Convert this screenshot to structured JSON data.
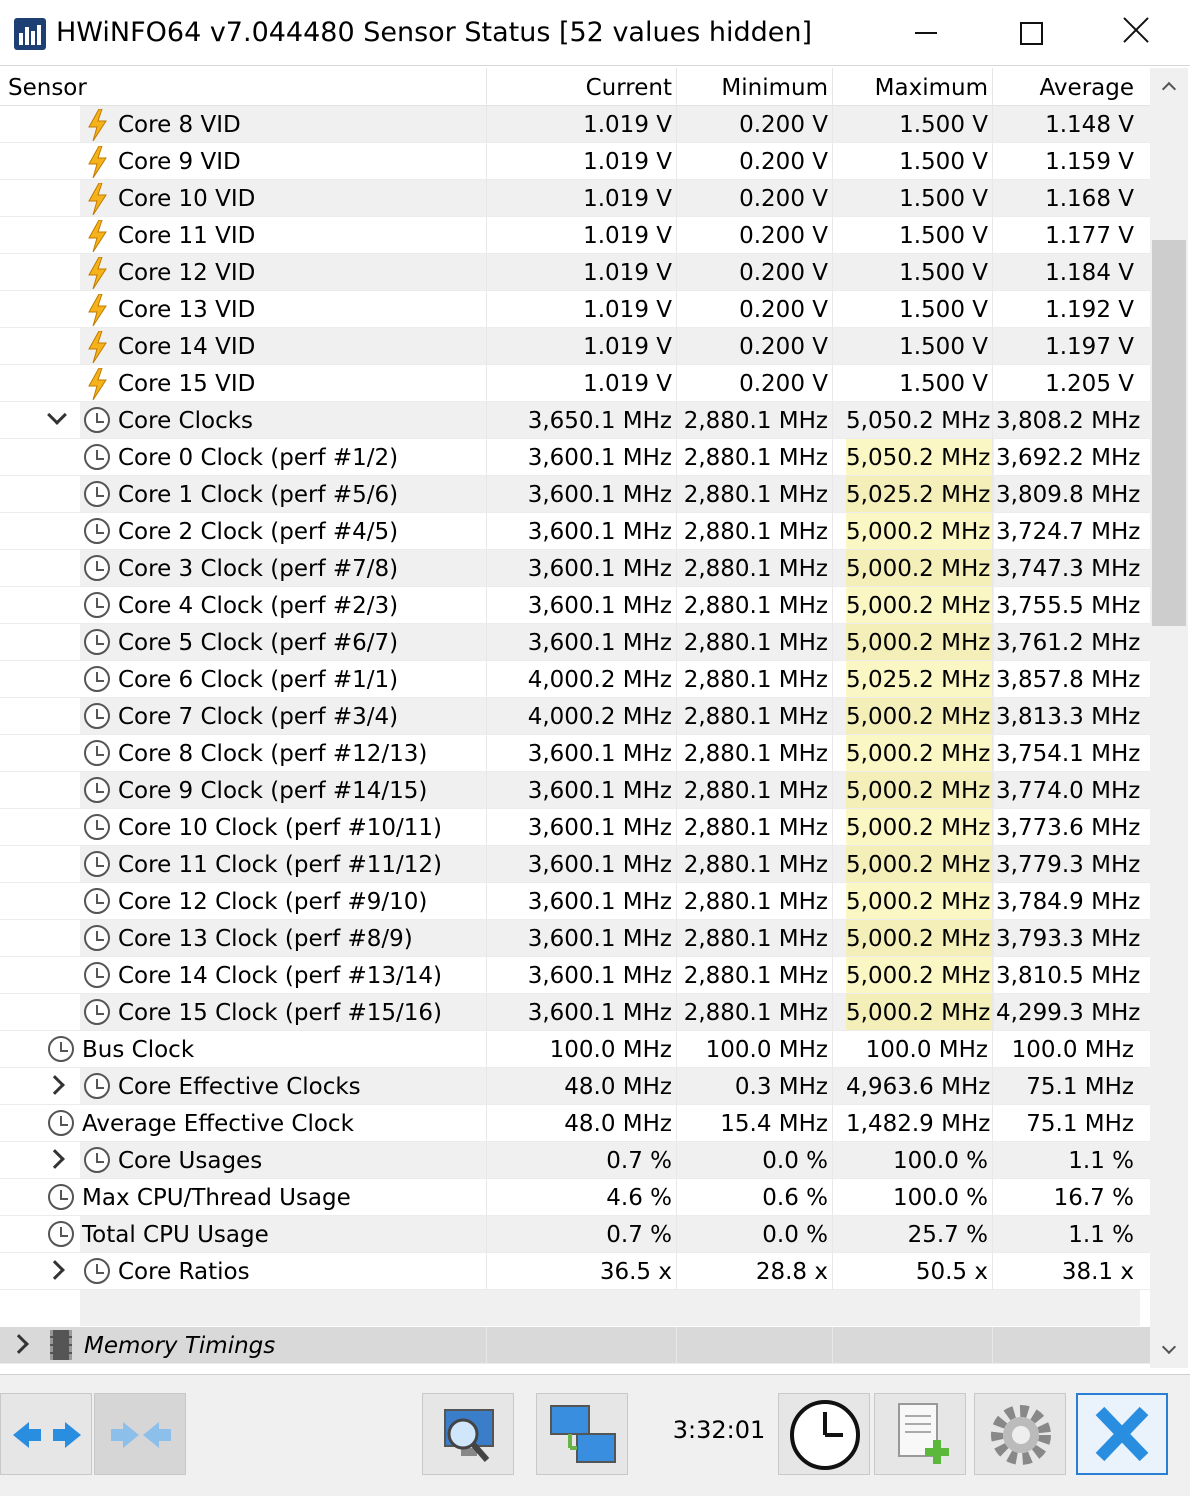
{
  "window": {
    "title": "HWiNFO64 v7.044480 Sensor Status [52 values hidden]"
  },
  "columns": {
    "sensor": "Sensor",
    "current": "Current",
    "minimum": "Minimum",
    "maximum": "Maximum",
    "average": "Average"
  },
  "rows": [
    {
      "label": "Core 8 VID",
      "current": "1.019 V",
      "minimum": "0.200 V",
      "maximum": "1.500 V",
      "average": "1.148 V",
      "icon": "bolt-icon",
      "level": 2
    },
    {
      "label": "Core 9 VID",
      "current": "1.019 V",
      "minimum": "0.200 V",
      "maximum": "1.500 V",
      "average": "1.159 V",
      "icon": "bolt-icon",
      "level": 2
    },
    {
      "label": "Core 10 VID",
      "current": "1.019 V",
      "minimum": "0.200 V",
      "maximum": "1.500 V",
      "average": "1.168 V",
      "icon": "bolt-icon",
      "level": 2
    },
    {
      "label": "Core 11 VID",
      "current": "1.019 V",
      "minimum": "0.200 V",
      "maximum": "1.500 V",
      "average": "1.177 V",
      "icon": "bolt-icon",
      "level": 2
    },
    {
      "label": "Core 12 VID",
      "current": "1.019 V",
      "minimum": "0.200 V",
      "maximum": "1.500 V",
      "average": "1.184 V",
      "icon": "bolt-icon",
      "level": 2
    },
    {
      "label": "Core 13 VID",
      "current": "1.019 V",
      "minimum": "0.200 V",
      "maximum": "1.500 V",
      "average": "1.192 V",
      "icon": "bolt-icon",
      "level": 2
    },
    {
      "label": "Core 14 VID",
      "current": "1.019 V",
      "minimum": "0.200 V",
      "maximum": "1.500 V",
      "average": "1.197 V",
      "icon": "bolt-icon",
      "level": 2
    },
    {
      "label": "Core 15 VID",
      "current": "1.019 V",
      "minimum": "0.200 V",
      "maximum": "1.500 V",
      "average": "1.205 V",
      "icon": "bolt-icon",
      "level": 2
    },
    {
      "label": "Core Clocks",
      "current": "3,650.1 MHz",
      "minimum": "2,880.1 MHz",
      "maximum": "5,050.2 MHz",
      "average": "3,808.2 MHz",
      "icon": "clock-icon",
      "level": 2,
      "expander": "expanded"
    },
    {
      "label": "Core 0 Clock (perf #1/2)",
      "current": "3,600.1 MHz",
      "minimum": "2,880.1 MHz",
      "maximum": "5,050.2 MHz",
      "average": "3,692.2 MHz",
      "icon": "clock-icon",
      "level": 2,
      "highlight": true
    },
    {
      "label": "Core 1 Clock (perf #5/6)",
      "current": "3,600.1 MHz",
      "minimum": "2,880.1 MHz",
      "maximum": "5,025.2 MHz",
      "average": "3,809.8 MHz",
      "icon": "clock-icon",
      "level": 2,
      "highlight": true
    },
    {
      "label": "Core 2 Clock (perf #4/5)",
      "current": "3,600.1 MHz",
      "minimum": "2,880.1 MHz",
      "maximum": "5,000.2 MHz",
      "average": "3,724.7 MHz",
      "icon": "clock-icon",
      "level": 2,
      "highlight": true
    },
    {
      "label": "Core 3 Clock (perf #7/8)",
      "current": "3,600.1 MHz",
      "minimum": "2,880.1 MHz",
      "maximum": "5,000.2 MHz",
      "average": "3,747.3 MHz",
      "icon": "clock-icon",
      "level": 2,
      "highlight": true
    },
    {
      "label": "Core 4 Clock (perf #2/3)",
      "current": "3,600.1 MHz",
      "minimum": "2,880.1 MHz",
      "maximum": "5,000.2 MHz",
      "average": "3,755.5 MHz",
      "icon": "clock-icon",
      "level": 2,
      "highlight": true
    },
    {
      "label": "Core 5 Clock (perf #6/7)",
      "current": "3,600.1 MHz",
      "minimum": "2,880.1 MHz",
      "maximum": "5,000.2 MHz",
      "average": "3,761.2 MHz",
      "icon": "clock-icon",
      "level": 2,
      "highlight": true
    },
    {
      "label": "Core 6 Clock (perf #1/1)",
      "current": "4,000.2 MHz",
      "minimum": "2,880.1 MHz",
      "maximum": "5,025.2 MHz",
      "average": "3,857.8 MHz",
      "icon": "clock-icon",
      "level": 2,
      "highlight": true
    },
    {
      "label": "Core 7 Clock (perf #3/4)",
      "current": "4,000.2 MHz",
      "minimum": "2,880.1 MHz",
      "maximum": "5,000.2 MHz",
      "average": "3,813.3 MHz",
      "icon": "clock-icon",
      "level": 2,
      "highlight": true
    },
    {
      "label": "Core 8 Clock (perf #12/13)",
      "current": "3,600.1 MHz",
      "minimum": "2,880.1 MHz",
      "maximum": "5,000.2 MHz",
      "average": "3,754.1 MHz",
      "icon": "clock-icon",
      "level": 2,
      "highlight": true
    },
    {
      "label": "Core 9 Clock (perf #14/15)",
      "current": "3,600.1 MHz",
      "minimum": "2,880.1 MHz",
      "maximum": "5,000.2 MHz",
      "average": "3,774.0 MHz",
      "icon": "clock-icon",
      "level": 2,
      "highlight": true
    },
    {
      "label": "Core 10 Clock (perf #10/11)",
      "current": "3,600.1 MHz",
      "minimum": "2,880.1 MHz",
      "maximum": "5,000.2 MHz",
      "average": "3,773.6 MHz",
      "icon": "clock-icon",
      "level": 2,
      "highlight": true
    },
    {
      "label": "Core 11 Clock (perf #11/12)",
      "current": "3,600.1 MHz",
      "minimum": "2,880.1 MHz",
      "maximum": "5,000.2 MHz",
      "average": "3,779.3 MHz",
      "icon": "clock-icon",
      "level": 2,
      "highlight": true
    },
    {
      "label": "Core 12 Clock (perf #9/10)",
      "current": "3,600.1 MHz",
      "minimum": "2,880.1 MHz",
      "maximum": "5,000.2 MHz",
      "average": "3,784.9 MHz",
      "icon": "clock-icon",
      "level": 2,
      "highlight": true
    },
    {
      "label": "Core 13 Clock (perf #8/9)",
      "current": "3,600.1 MHz",
      "minimum": "2,880.1 MHz",
      "maximum": "5,000.2 MHz",
      "average": "3,793.3 MHz",
      "icon": "clock-icon",
      "level": 2,
      "highlight": true
    },
    {
      "label": "Core 14 Clock (perf #13/14)",
      "current": "3,600.1 MHz",
      "minimum": "2,880.1 MHz",
      "maximum": "5,000.2 MHz",
      "average": "3,810.5 MHz",
      "icon": "clock-icon",
      "level": 2,
      "highlight": true
    },
    {
      "label": "Core 15 Clock (perf #15/16)",
      "current": "3,600.1 MHz",
      "minimum": "2,880.1 MHz",
      "maximum": "5,000.2 MHz",
      "average": "4,299.3 MHz",
      "icon": "clock-icon",
      "level": 2,
      "highlight": true
    },
    {
      "label": "Bus Clock",
      "current": "100.0 MHz",
      "minimum": "100.0 MHz",
      "maximum": "100.0 MHz",
      "average": "100.0 MHz",
      "icon": "clock-icon",
      "level": 1
    },
    {
      "label": "Core Effective Clocks",
      "current": "48.0 MHz",
      "minimum": "0.3 MHz",
      "maximum": "4,963.6 MHz",
      "average": "75.1 MHz",
      "icon": "clock-icon",
      "level": 2,
      "expander": "collapsed"
    },
    {
      "label": "Average Effective Clock",
      "current": "48.0 MHz",
      "minimum": "15.4 MHz",
      "maximum": "1,482.9 MHz",
      "average": "75.1 MHz",
      "icon": "clock-icon",
      "level": 1
    },
    {
      "label": "Core Usages",
      "current": "0.7 %",
      "minimum": "0.0 %",
      "maximum": "100.0 %",
      "average": "1.1 %",
      "icon": "clock-icon",
      "level": 2,
      "expander": "collapsed"
    },
    {
      "label": "Max CPU/Thread Usage",
      "current": "4.6 %",
      "minimum": "0.6 %",
      "maximum": "100.0 %",
      "average": "16.7 %",
      "icon": "clock-icon",
      "level": 1
    },
    {
      "label": "Total CPU Usage",
      "current": "0.7 %",
      "minimum": "0.0 %",
      "maximum": "25.7 %",
      "average": "1.1 %",
      "icon": "clock-icon",
      "level": 1
    },
    {
      "label": "Core Ratios",
      "current": "36.5 x",
      "minimum": "28.8 x",
      "maximum": "50.5 x",
      "average": "38.1 x",
      "icon": "clock-icon",
      "level": 2,
      "expander": "collapsed"
    }
  ],
  "group": {
    "label": "Memory Timings",
    "icon": "memory-chip-icon"
  },
  "toolbar": {
    "time": "3:32:01",
    "buttons": [
      "expand-arrows-icon",
      "collapse-arrows-icon",
      "monitor-search-icon",
      "network-monitors-icon",
      "clock-icon",
      "add-report-icon",
      "settings-gear-icon",
      "close-x-icon"
    ]
  },
  "colors": {
    "max_highlight": "#fbf7c4",
    "row_alt": "#f0f0f0",
    "accent": "#2a7fd4",
    "bolt": "#f5b21b"
  }
}
